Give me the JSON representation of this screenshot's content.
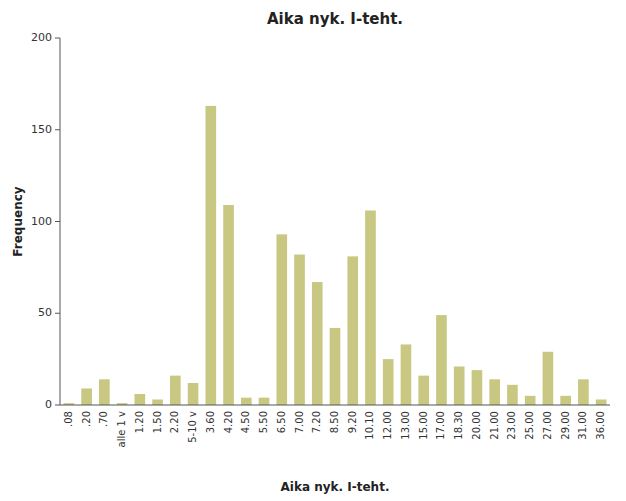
{
  "chart_data": {
    "type": "bar",
    "title": "Aika nyk. I-teht.",
    "xlabel": "Aika nyk. I-teht.",
    "ylabel": "Frequency",
    "categories": [
      ".08",
      ".20",
      ".70",
      "alle 1 v",
      "1.20",
      "1.50",
      "2.20",
      "5-10 v",
      "3.60",
      "4.20",
      "4.50",
      "5.50",
      "6.50",
      "7.00",
      "7.20",
      "8.50",
      "9.20",
      "10.10",
      "12.00",
      "13.00",
      "15.00",
      "17.00",
      "18.30",
      "20.00",
      "21.00",
      "23.00",
      "25.00",
      "27.00",
      "29.00",
      "31.00",
      "36.00"
    ],
    "values": [
      1,
      9,
      14,
      1,
      6,
      3,
      16,
      12,
      163,
      109,
      4,
      4,
      93,
      82,
      67,
      42,
      81,
      106,
      25,
      33,
      16,
      49,
      21,
      19,
      14,
      11,
      5,
      29,
      5,
      14,
      3
    ],
    "color": "#c8c882",
    "ylim": [
      0,
      200
    ],
    "yticks": [
      0,
      50,
      100,
      150,
      200
    ],
    "grid": false
  }
}
